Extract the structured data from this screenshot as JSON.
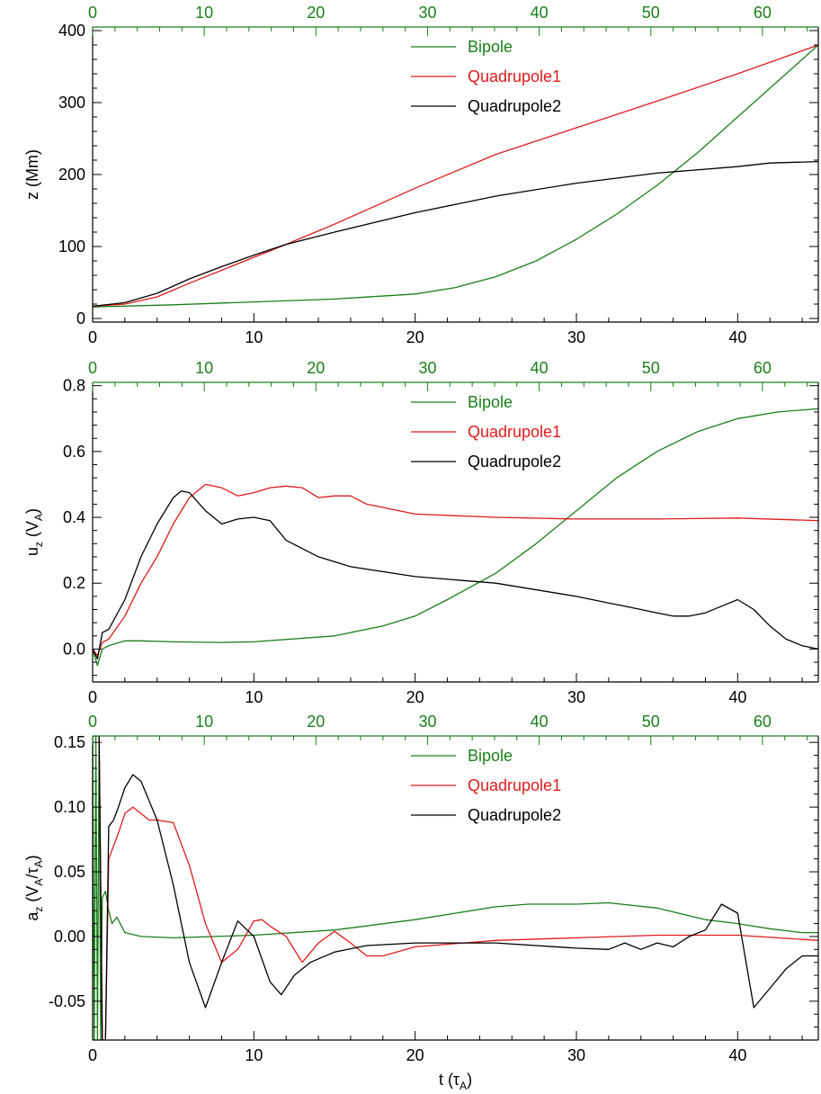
{
  "colors": {
    "bipole": "#1a7f1a",
    "quadrupole1": "#e01b1b",
    "quadrupole2": "#000000",
    "axis": "#000000",
    "top_axis": "#1a7f1a"
  },
  "chart_data": [
    {
      "type": "line",
      "ylabel": "z (Mm)",
      "ylabel_sub": "",
      "ylabel_tail": "",
      "xlabel": "",
      "xlim": [
        0,
        45
      ],
      "ylim": [
        -5,
        405
      ],
      "top_xlim": [
        0,
        65
      ],
      "xticks": [
        0,
        10,
        20,
        30,
        40
      ],
      "yticks": [
        0,
        100,
        200,
        300,
        400
      ],
      "top_xticks": [
        0,
        10,
        20,
        30,
        40,
        50,
        60
      ],
      "legend_position": "top-center",
      "series": [
        {
          "name": "Bipole",
          "color": "#1a7f1a",
          "x": [
            0,
            5,
            10,
            15,
            20,
            22.5,
            25,
            27.5,
            30,
            32.5,
            35,
            37.5,
            40,
            42.5,
            45
          ],
          "y": [
            16,
            19,
            23,
            27,
            34,
            43,
            58,
            80,
            110,
            145,
            185,
            230,
            280,
            330,
            380
          ]
        },
        {
          "name": "Quadrupole1",
          "color": "#e01b1b",
          "x": [
            0,
            2,
            4,
            6,
            8,
            10,
            12,
            15,
            20,
            25,
            30,
            35,
            40,
            45
          ],
          "y": [
            17,
            20,
            30,
            49,
            67,
            85,
            103,
            131,
            181,
            228,
            265,
            302,
            340,
            380
          ]
        },
        {
          "name": "Quadrupole2",
          "color": "#000000",
          "x": [
            0,
            2,
            4,
            6,
            8,
            10,
            12,
            15,
            20,
            25,
            30,
            35,
            40,
            42,
            45
          ],
          "y": [
            17,
            22,
            35,
            55,
            72,
            88,
            103,
            120,
            147,
            170,
            188,
            202,
            211,
            216,
            218
          ]
        }
      ]
    },
    {
      "type": "line",
      "ylabel": "u",
      "ylabel_sub": "z",
      "ylabel_tail": " (V_A)",
      "xlabel": "",
      "xlim": [
        0,
        45
      ],
      "ylim": [
        -0.1,
        0.81
      ],
      "top_xlim": [
        0,
        65
      ],
      "xticks": [
        0,
        10,
        20,
        30,
        40
      ],
      "yticks": [
        0.0,
        0.2,
        0.4,
        0.6,
        0.8
      ],
      "ytick_labels": [
        "0.0",
        "0.2",
        "0.4",
        "0.6",
        "0.8"
      ],
      "top_xticks": [
        0,
        10,
        20,
        30,
        40,
        50,
        60
      ],
      "legend_position": "top-center",
      "series": [
        {
          "name": "Bipole",
          "color": "#1a7f1a",
          "x": [
            0,
            0.3,
            0.6,
            1,
            2,
            3,
            5,
            8,
            10,
            15,
            18,
            20,
            22,
            25,
            27.5,
            30,
            32.5,
            35,
            37.5,
            40,
            42.5,
            45
          ],
          "y": [
            0,
            -0.05,
            0.0,
            0.01,
            0.025,
            0.025,
            0.022,
            0.02,
            0.022,
            0.04,
            0.07,
            0.1,
            0.15,
            0.23,
            0.32,
            0.42,
            0.52,
            0.6,
            0.66,
            0.7,
            0.72,
            0.73
          ]
        },
        {
          "name": "Quadrupole1",
          "color": "#e01b1b",
          "x": [
            0,
            0.3,
            0.6,
            1,
            2,
            3,
            4,
            5,
            6,
            7,
            8,
            9,
            10,
            11,
            12,
            13,
            14,
            15,
            16,
            17,
            20,
            25,
            30,
            35,
            40,
            45
          ],
          "y": [
            0,
            -0.02,
            0.02,
            0.03,
            0.1,
            0.2,
            0.28,
            0.38,
            0.46,
            0.5,
            0.49,
            0.465,
            0.475,
            0.49,
            0.495,
            0.49,
            0.46,
            0.465,
            0.465,
            0.44,
            0.41,
            0.4,
            0.395,
            0.395,
            0.398,
            0.39
          ]
        },
        {
          "name": "Quadrupole2",
          "color": "#000000",
          "x": [
            0,
            0.3,
            0.6,
            1,
            2,
            3,
            4,
            5,
            5.5,
            6,
            7,
            8,
            9,
            10,
            11,
            12,
            14,
            16,
            20,
            25,
            30,
            32,
            33,
            34,
            35,
            36,
            37,
            38,
            39,
            40,
            41,
            42,
            43,
            44,
            45
          ],
          "y": [
            0,
            -0.03,
            0.05,
            0.06,
            0.15,
            0.28,
            0.38,
            0.46,
            0.48,
            0.475,
            0.42,
            0.38,
            0.395,
            0.4,
            0.39,
            0.33,
            0.28,
            0.25,
            0.22,
            0.2,
            0.16,
            0.14,
            0.13,
            0.12,
            0.11,
            0.1,
            0.1,
            0.11,
            0.13,
            0.15,
            0.12,
            0.07,
            0.03,
            0.01,
            0.0
          ]
        }
      ]
    },
    {
      "type": "line",
      "ylabel": "a",
      "ylabel_sub": "z",
      "ylabel_tail": " (V_A/τ_A)",
      "xlabel": "t (τ_A)",
      "xlim": [
        0,
        45
      ],
      "ylim": [
        -0.08,
        0.155
      ],
      "top_xlim": [
        0,
        65
      ],
      "xticks": [
        0,
        10,
        20,
        30,
        40
      ],
      "yticks": [
        -0.05,
        0.0,
        0.05,
        0.1,
        0.15
      ],
      "ytick_labels": [
        "-0.05",
        "0.00",
        "0.05",
        "0.10",
        "0.15"
      ],
      "top_xticks": [
        0,
        10,
        20,
        30,
        40,
        50,
        60
      ],
      "legend_position": "top-center",
      "series": [
        {
          "name": "Bipole",
          "color": "#1a7f1a",
          "x": [
            0,
            0.1,
            0.2,
            0.3,
            0.4,
            0.5,
            0.6,
            0.8,
            1,
            1.2,
            1.5,
            2,
            3,
            5,
            10,
            15,
            20,
            25,
            27,
            30,
            32,
            35,
            38,
            40,
            42,
            44,
            45
          ],
          "y": [
            0.155,
            -0.08,
            0.155,
            -0.08,
            0.155,
            -0.08,
            0.03,
            0.035,
            0.02,
            0.01,
            0.015,
            0.003,
            0.0,
            -0.001,
            0.001,
            0.005,
            0.013,
            0.023,
            0.025,
            0.025,
            0.026,
            0.022,
            0.013,
            0.01,
            0.006,
            0.003,
            0.003
          ]
        },
        {
          "name": "Quadrupole1",
          "color": "#e01b1b",
          "x": [
            0,
            0.2,
            0.4,
            0.6,
            0.8,
            1,
            1.3,
            1.6,
            2,
            2.5,
            3,
            3.5,
            4,
            5,
            6,
            7,
            8,
            9,
            10,
            10.5,
            11,
            12,
            13,
            14,
            15,
            16,
            17,
            18,
            20,
            25,
            30,
            35,
            40,
            45
          ],
          "y": [
            0.155,
            0.155,
            0.155,
            -0.08,
            -0.08,
            0.06,
            0.07,
            0.08,
            0.095,
            0.1,
            0.095,
            0.09,
            0.09,
            0.088,
            0.055,
            0.01,
            -0.02,
            -0.01,
            0.012,
            0.013,
            0.008,
            0.0,
            -0.02,
            -0.005,
            0.004,
            -0.005,
            -0.015,
            -0.015,
            -0.008,
            -0.003,
            -0.001,
            0.001,
            0.001,
            -0.003
          ]
        },
        {
          "name": "Quadrupole2",
          "color": "#000000",
          "x": [
            0,
            0.2,
            0.4,
            0.6,
            0.8,
            1,
            1.3,
            1.6,
            2,
            2.5,
            3,
            4,
            5,
            6,
            7,
            8,
            9,
            10,
            11,
            11.7,
            12.5,
            13.5,
            15,
            17,
            20,
            25,
            30,
            32,
            33,
            34,
            35,
            36,
            37,
            38,
            39,
            40,
            41,
            42,
            43,
            44,
            45
          ],
          "y": [
            0.155,
            0.155,
            0.155,
            -0.08,
            -0.08,
            0.085,
            0.09,
            0.1,
            0.115,
            0.125,
            0.12,
            0.09,
            0.04,
            -0.02,
            -0.055,
            -0.02,
            0.012,
            0.0,
            -0.035,
            -0.045,
            -0.03,
            -0.02,
            -0.012,
            -0.007,
            -0.005,
            -0.005,
            -0.009,
            -0.01,
            -0.005,
            -0.01,
            -0.005,
            -0.008,
            0.0,
            0.005,
            0.025,
            0.018,
            -0.055,
            -0.04,
            -0.025,
            -0.015,
            -0.015
          ]
        }
      ]
    }
  ]
}
